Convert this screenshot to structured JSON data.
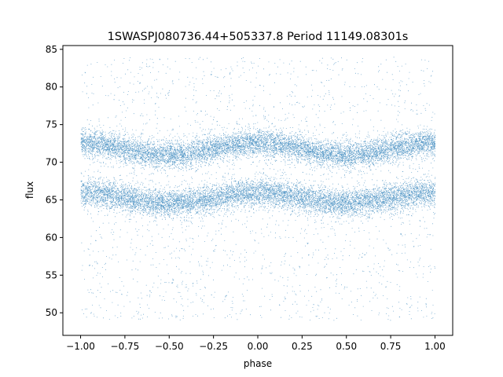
{
  "chart_data": {
    "type": "scatter",
    "title": "1SWASPJ080736.44+505337.8 Period 11149.08301s",
    "xlabel": "phase",
    "ylabel": "flux",
    "xlim": [
      -1.1,
      1.1
    ],
    "ylim": [
      47,
      85.5
    ],
    "xticks": [
      -1.0,
      -0.75,
      -0.5,
      -0.25,
      0.0,
      0.25,
      0.5,
      0.75,
      1.0
    ],
    "xtick_labels": [
      "−1.00",
      "−0.75",
      "−0.50",
      "−0.25",
      "0.00",
      "0.25",
      "0.50",
      "0.75",
      "1.00"
    ],
    "yticks": [
      50,
      55,
      60,
      65,
      70,
      75,
      80,
      85
    ],
    "ytick_labels": [
      "50",
      "55",
      "60",
      "65",
      "70",
      "75",
      "80",
      "85"
    ],
    "grid": false,
    "point_color": "#1f77b4",
    "series": [
      {
        "band_center": 65.3,
        "band_amplitude": 0.7,
        "band_spread": 0.9,
        "x_range": [
          -1.0,
          1.0
        ]
      },
      {
        "band_center": 71.8,
        "band_amplitude": 0.8,
        "band_spread": 0.9,
        "x_range": [
          -1.0,
          1.0
        ]
      }
    ],
    "outlier_range": [
      49,
      84
    ]
  }
}
